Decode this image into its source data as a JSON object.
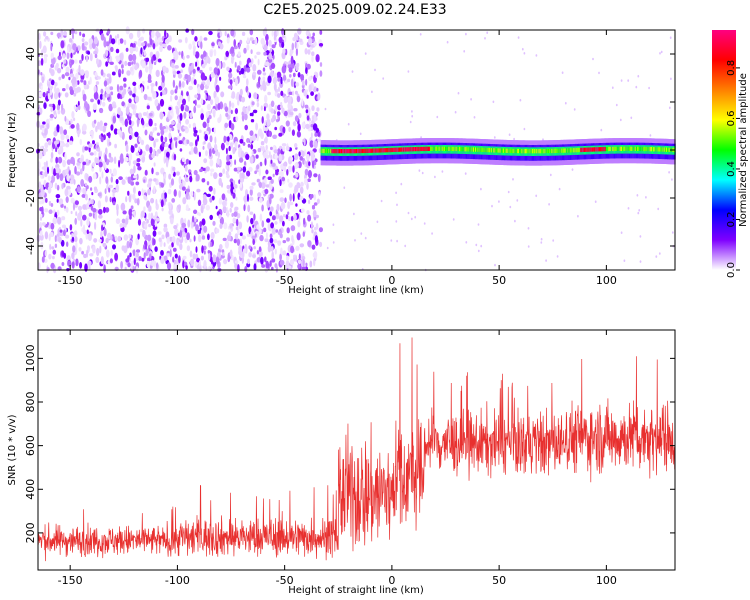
{
  "title": "C2E5.2025.009.02.24.E33",
  "chart_data": [
    {
      "type": "heatmap",
      "title": "C2E5.2025.009.02.24.E33",
      "xlabel": "Height of straight line (km)",
      "ylabel": "Frequency (Hz)",
      "xlim": [
        -165,
        132
      ],
      "ylim": [
        -50,
        50
      ],
      "x_ticks": [
        -150,
        -100,
        -50,
        0,
        50,
        100
      ],
      "y_ticks": [
        -40,
        -20,
        0,
        20,
        40
      ],
      "grid": false,
      "colorbar": {
        "label": "Normalized spectral amplitude",
        "range": [
          0.0,
          0.95
        ],
        "ticks": [
          "0.0",
          "0.2",
          "0.4",
          "0.6",
          "0.8"
        ],
        "colormap": [
          "#ffffff",
          "#7f00ff",
          "#0000ff",
          "#00ffff",
          "#00ff00",
          "#ffff00",
          "#ff8000",
          "#ff0000",
          "#ff0080"
        ]
      },
      "regions": [
        {
          "x_range": [
            -165,
            -33
          ],
          "freq_range": [
            -50,
            50
          ],
          "pattern": "noise",
          "amplitude_range": [
            0.0,
            0.15
          ]
        },
        {
          "x_range": [
            -33,
            132
          ],
          "freq_range": [
            -2,
            3
          ],
          "pattern": "band",
          "amplitude_range": [
            0.1,
            0.95
          ]
        }
      ]
    },
    {
      "type": "line",
      "xlabel": "Height of straight line (km)",
      "ylabel": "SNR (10 * v/v)",
      "xlim": [
        -165,
        132
      ],
      "ylim": [
        30,
        1130
      ],
      "x_ticks": [
        -150,
        -100,
        -50,
        0,
        50,
        100
      ],
      "y_ticks": [
        200,
        400,
        600,
        800,
        1000
      ],
      "color": "#e8302f",
      "grid": false,
      "segments": [
        {
          "x": [
            -165,
            -100
          ],
          "mean": 165,
          "low": 60,
          "high": 340
        },
        {
          "x": [
            -100,
            -25
          ],
          "mean": 180,
          "low": 60,
          "high": 420
        },
        {
          "x": [
            -25,
            0
          ],
          "mean": 380,
          "low": 50,
          "high": 1130
        },
        {
          "x": [
            0,
            15
          ],
          "mean": 460,
          "low": 150,
          "high": 1110
        },
        {
          "x": [
            15,
            80
          ],
          "mean": 610,
          "low": 350,
          "high": 950
        },
        {
          "x": [
            80,
            132
          ],
          "mean": 640,
          "low": 400,
          "high": 1040
        }
      ]
    }
  ]
}
